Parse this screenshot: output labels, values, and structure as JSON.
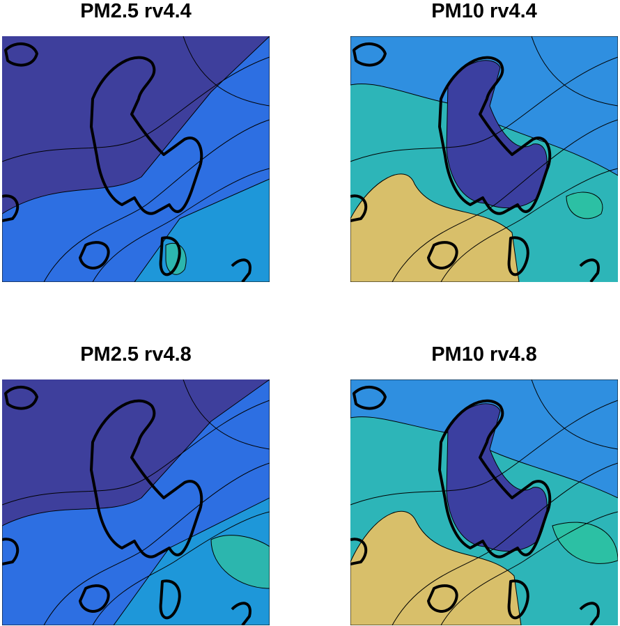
{
  "panels": [
    {
      "title": "PM2.5 rv4.4"
    },
    {
      "title": "PM10 rv4.4"
    },
    {
      "title": "PM2.5 rv4.8"
    },
    {
      "title": "PM10 rv4.8"
    }
  ]
}
